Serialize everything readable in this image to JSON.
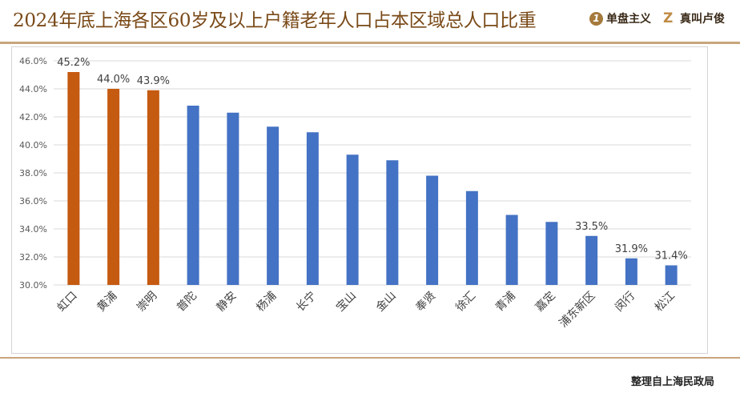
{
  "header": {
    "title": "2024年底上海各区60岁及以上户籍老年人口占本区域总人口比重",
    "logo1": {
      "mark": "1",
      "text": "单盘主义"
    },
    "logo2": {
      "mark": "Z",
      "text": "真叫卢俊"
    }
  },
  "footer": {
    "source": "整理自上海民政局"
  },
  "colors": {
    "highlight": "#c55a11",
    "normal": "#4472c4",
    "grid": "#d9d9d9",
    "accent": "#c8a57a"
  },
  "chart_data": {
    "type": "bar",
    "title": "2024年底上海各区60岁及以上户籍老年人口占本区域总人口比重",
    "categories": [
      "虹口",
      "黄浦",
      "崇明",
      "普陀",
      "静安",
      "杨浦",
      "长宁",
      "宝山",
      "金山",
      "奉贤",
      "徐汇",
      "青浦",
      "嘉定",
      "浦东新区",
      "闵行",
      "松江"
    ],
    "values": [
      45.2,
      44.0,
      43.9,
      42.8,
      42.3,
      41.3,
      40.9,
      39.3,
      38.9,
      37.8,
      36.7,
      35.0,
      34.5,
      33.5,
      31.9,
      31.4
    ],
    "highlighted": [
      "虹口",
      "黄浦",
      "崇明"
    ],
    "data_labels": {
      "虹口": "45.2%",
      "黄浦": "44.0%",
      "崇明": "43.9%",
      "浦东新区": "33.5%",
      "闵行": "31.9%",
      "松江": "31.4%"
    },
    "yticks": [
      "30.0%",
      "32.0%",
      "34.0%",
      "36.0%",
      "38.0%",
      "40.0%",
      "42.0%",
      "44.0%",
      "46.0%"
    ],
    "ylim": [
      30,
      46
    ],
    "grid": true,
    "xlabel": "",
    "ylabel": ""
  }
}
